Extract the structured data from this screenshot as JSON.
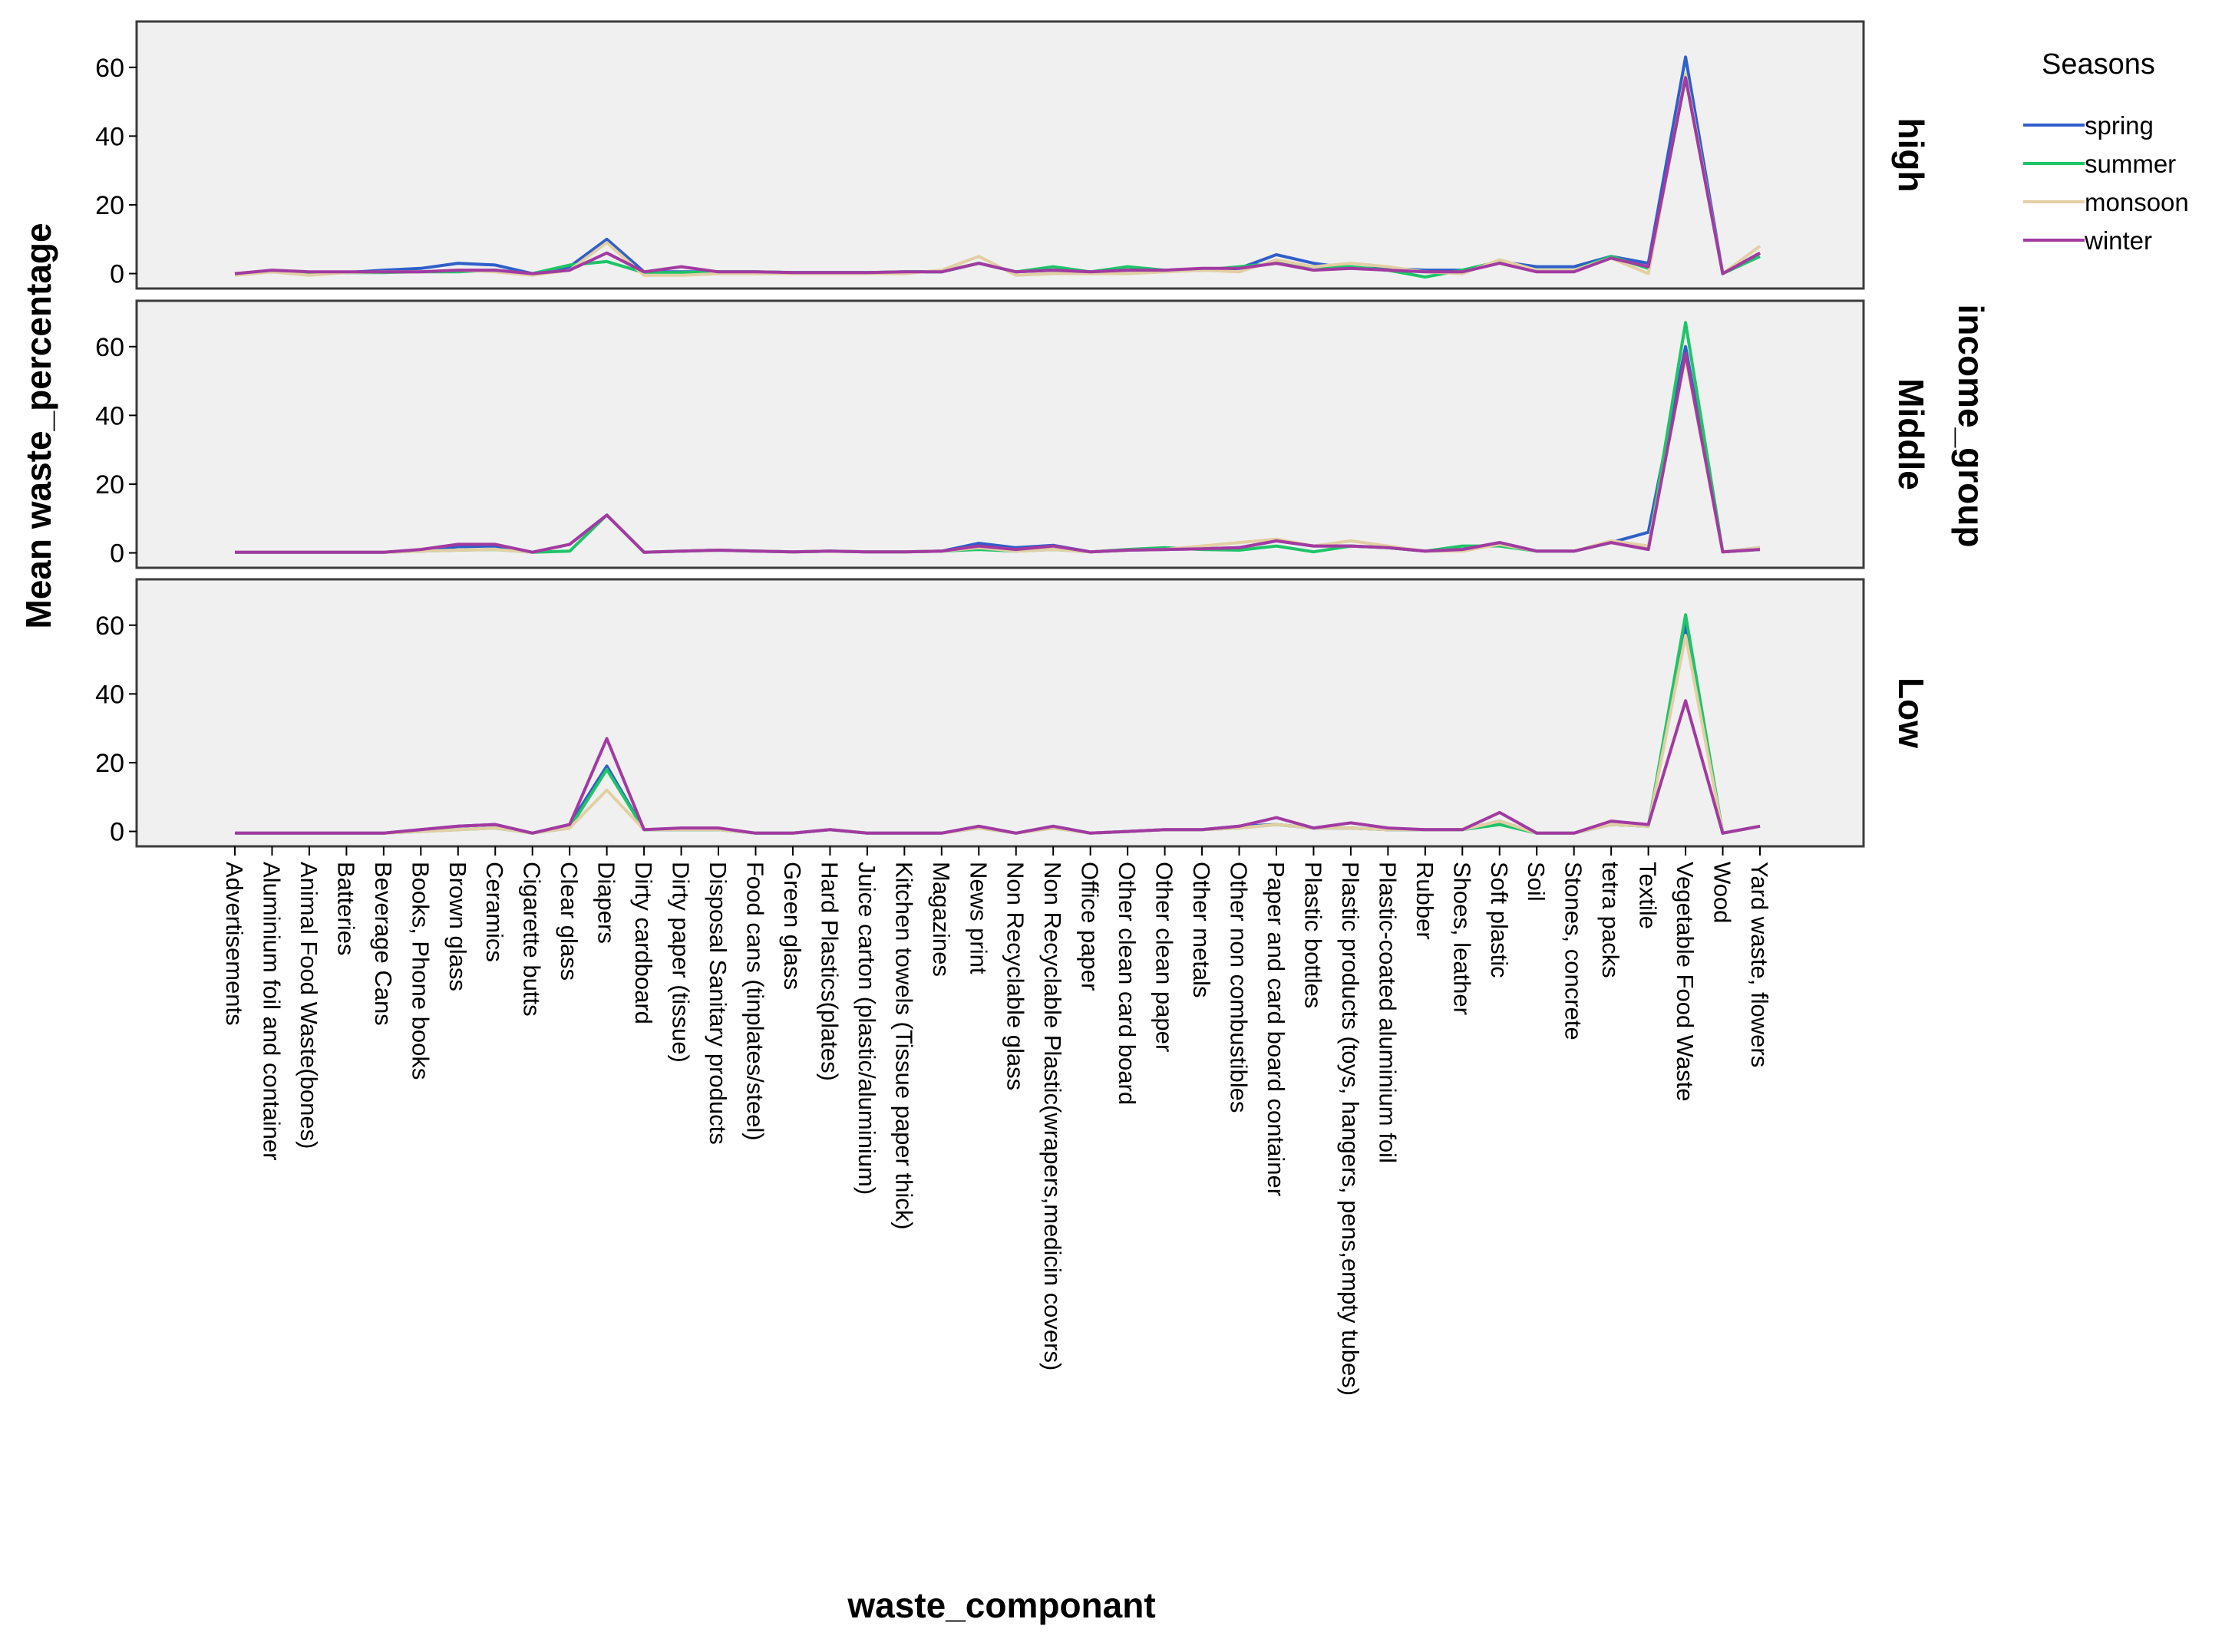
{
  "chart_data": {
    "type": "line",
    "xlabel": "waste_componant",
    "ylabel": "Mean waste_percentage",
    "facet_title": "income_group",
    "legend": {
      "title": "Seasons",
      "placement": "top-right",
      "entries": [
        {
          "name": "spring",
          "color": "#2f5fc9"
        },
        {
          "name": "summer",
          "color": "#1ec468"
        },
        {
          "name": "monsoon",
          "color": "#e2cfa4"
        },
        {
          "name": "winter",
          "color": "#a23aa1"
        }
      ]
    },
    "ylim": [
      -3,
      72
    ],
    "yticks": [
      0,
      20,
      40,
      60
    ],
    "grid": false,
    "categories": [
      "Advertisements",
      "Aluminium foil and container",
      "Animal Food Waste(bones)",
      "Batteries",
      "Beverage Cans",
      "Books, Phone books",
      "Brown glass",
      "Ceramics",
      "Cigarette butts",
      "Clear glass",
      "Diapers",
      "Dirty cardboard",
      "Dirty paper (tissue)",
      "Disposal Sanitary products",
      "Food cans (tinplates/steel)",
      "Green glass",
      "Hard Plastics(plates)",
      "Juice carton (plastic/aluminium)",
      "Kitchen towels (Tissue paper thick)",
      "Magazines",
      "News print",
      "Non Recyclable glass",
      "Non Recyclable Plastic(wrapers,medicin covers)",
      "Office paper",
      "Other clean card board",
      "Other clean paper",
      "Other metals",
      "Other non combustibles",
      "Paper and card board container",
      "Plastic bottles",
      "Plastic products (toys, hangers, pens,empty tubes)",
      "Plastic-coated aluminium foil",
      "Rubber",
      "Shoes, leather",
      "Soft plastic",
      "Soil",
      "Stones, concrete",
      "tetra packs",
      "Textile",
      "Vegetable Food Waste",
      "Wood",
      "Yard waste, flowers"
    ],
    "panels": [
      {
        "label": "high",
        "series": [
          {
            "name": "spring",
            "values": [
              0,
              0.5,
              0.4,
              0.3,
              1,
              1.5,
              3,
              2.5,
              0,
              2,
              10,
              0.5,
              0.5,
              0.5,
              0.5,
              0.3,
              0.3,
              0.3,
              0.5,
              0.5,
              3,
              0.5,
              1,
              0.5,
              1,
              1,
              1,
              1.5,
              5.5,
              3,
              1.5,
              1.5,
              1,
              1,
              3.5,
              2,
              2,
              5,
              3,
              63,
              0,
              6
            ]
          },
          {
            "name": "summer",
            "values": [
              0,
              0.5,
              0.3,
              0.3,
              0.3,
              0.5,
              0.5,
              1,
              0,
              2.5,
              3.5,
              0.3,
              0.3,
              0.5,
              0.5,
              0.3,
              0.3,
              0.3,
              0.5,
              0.5,
              3,
              0.5,
              2,
              0.5,
              2,
              1,
              1,
              2,
              3,
              2,
              2,
              1,
              -1,
              1,
              3.5,
              1,
              1,
              5,
              1.5,
              57,
              0,
              5
            ]
          },
          {
            "name": "monsoon",
            "values": [
              -0.5,
              0.5,
              -0.5,
              0.3,
              0.5,
              0.5,
              1,
              0.5,
              -0.5,
              1,
              9,
              -0.5,
              -0.5,
              0,
              0,
              0,
              0,
              0,
              0,
              1,
              5,
              -0.5,
              0,
              0,
              0,
              0.5,
              1,
              0.5,
              4,
              2,
              3,
              2,
              0.5,
              0,
              4,
              1,
              1,
              4.5,
              0,
              58,
              0,
              8
            ]
          },
          {
            "name": "winter",
            "values": [
              0,
              1,
              0.5,
              0.5,
              0.5,
              0.5,
              1,
              1,
              0,
              1,
              6,
              0.5,
              2,
              0.5,
              0.5,
              0.3,
              0.3,
              0.3,
              0.5,
              0.5,
              3,
              0.5,
              1,
              0.5,
              1,
              1,
              1.5,
              1.5,
              3,
              1,
              1.5,
              1,
              0.5,
              0.5,
              3,
              0.5,
              0.5,
              4.5,
              2,
              57,
              0,
              6
            ]
          }
        ]
      },
      {
        "label": "Middle",
        "series": [
          {
            "name": "spring",
            "values": [
              0.2,
              0.2,
              0.2,
              0.2,
              0.2,
              0.8,
              1.8,
              2,
              0.2,
              2.5,
              11,
              0.2,
              0.5,
              0.8,
              0.5,
              0.3,
              0.5,
              0.3,
              0.3,
              0.5,
              2.8,
              1.5,
              2.2,
              0.3,
              0.8,
              1,
              1.2,
              1.5,
              3.5,
              2,
              2,
              1.5,
              0.5,
              1,
              3,
              0.5,
              0.5,
              3,
              6,
              60,
              0.3,
              1.5
            ]
          },
          {
            "name": "summer",
            "values": [
              0.2,
              0.2,
              0.2,
              0.2,
              0.2,
              0.5,
              0.8,
              1,
              0.2,
              0.5,
              11,
              0.2,
              0.5,
              0.8,
              0.5,
              0.3,
              0.5,
              0.3,
              0.3,
              0.5,
              1,
              0.5,
              1,
              0.3,
              1,
              1.5,
              1,
              0.8,
              2,
              0.3,
              2,
              1.5,
              0.5,
              2,
              2,
              0.5,
              0.5,
              3,
              1.5,
              67,
              0.3,
              1
            ]
          },
          {
            "name": "monsoon",
            "values": [
              0.2,
              0.2,
              0.2,
              0.2,
              0.2,
              0.5,
              0.8,
              1,
              0.2,
              2.5,
              11,
              0.2,
              0.5,
              0.8,
              0.5,
              0.3,
              0.5,
              0.3,
              0.3,
              0.5,
              1.5,
              0.5,
              1,
              0.3,
              0.8,
              1,
              2,
              3,
              4,
              2,
              3.5,
              2,
              0.5,
              0.5,
              2.5,
              0.5,
              0.5,
              3.5,
              2,
              57,
              0.3,
              1.5
            ]
          },
          {
            "name": "winter",
            "values": [
              0.2,
              0.2,
              0.2,
              0.2,
              0.2,
              1,
              2.5,
              2.5,
              0.2,
              2.5,
              11,
              0.2,
              0.5,
              0.8,
              0.5,
              0.3,
              0.5,
              0.3,
              0.3,
              0.5,
              2,
              1,
              2,
              0.3,
              0.8,
              1,
              1.2,
              1.5,
              3.5,
              2,
              2,
              1.5,
              0.5,
              1,
              3,
              0.5,
              0.5,
              3,
              1,
              58,
              0.3,
              1
            ]
          }
        ]
      },
      {
        "label": "Low",
        "series": [
          {
            "name": "spring",
            "values": [
              -0.5,
              -0.5,
              -0.5,
              -0.5,
              -0.5,
              0.5,
              1.5,
              2,
              -0.5,
              2,
              19,
              0.5,
              0.5,
              0.5,
              -0.5,
              -0.5,
              0.5,
              -0.5,
              -0.5,
              -0.5,
              1.5,
              -0.5,
              1.5,
              -0.5,
              0,
              0.5,
              0.5,
              1.5,
              2,
              1,
              1,
              0.5,
              0.5,
              0.5,
              3,
              -0.5,
              -0.5,
              2,
              1.5,
              60,
              -0.5,
              1.5
            ]
          },
          {
            "name": "summer",
            "values": [
              -0.5,
              -0.5,
              -0.5,
              -0.5,
              -0.5,
              0,
              0.5,
              1,
              -0.5,
              1,
              18,
              0.5,
              0.5,
              0.5,
              -0.5,
              -0.5,
              0.5,
              -0.5,
              -0.5,
              -0.5,
              1,
              -0.5,
              1,
              -0.5,
              0,
              0.5,
              0.5,
              1,
              2,
              1,
              1,
              0.5,
              0.5,
              0.5,
              2,
              -0.5,
              -0.5,
              2,
              1.5,
              63,
              -0.5,
              1.5
            ]
          },
          {
            "name": "monsoon",
            "values": [
              -0.5,
              -0.5,
              -0.5,
              -0.5,
              -0.5,
              0,
              0.5,
              1,
              -0.5,
              1,
              12,
              0.5,
              0.5,
              0.5,
              -0.5,
              -0.5,
              0.5,
              -0.5,
              -0.5,
              -0.5,
              1,
              -0.5,
              1,
              -0.5,
              0,
              0.5,
              0.5,
              1,
              2,
              1,
              1,
              0.5,
              0.5,
              0.5,
              3,
              -0.5,
              -0.5,
              2,
              1.5,
              57,
              -0.5,
              1.5
            ]
          },
          {
            "name": "winter",
            "values": [
              -0.5,
              -0.5,
              -0.5,
              -0.5,
              -0.5,
              0.5,
              1.5,
              2,
              -0.5,
              2,
              27,
              0.5,
              1,
              1,
              -0.5,
              -0.5,
              0.5,
              -0.5,
              -0.5,
              -0.5,
              1.5,
              -0.5,
              1.5,
              -0.5,
              0,
              0.5,
              0.5,
              1.5,
              4,
              1,
              2.5,
              1,
              0.5,
              0.5,
              5.5,
              -0.5,
              -0.5,
              3,
              2,
              38,
              -0.5,
              1.5
            ]
          }
        ]
      }
    ]
  }
}
